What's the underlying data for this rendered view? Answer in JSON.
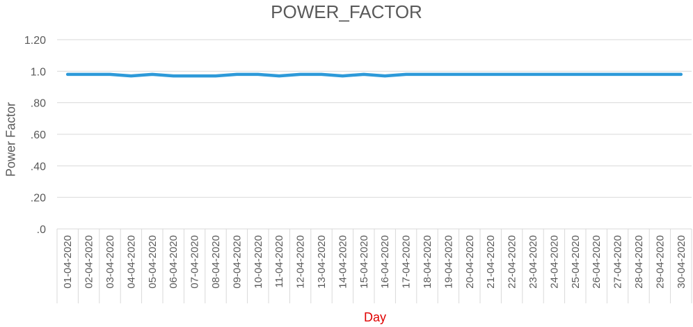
{
  "chart_data": {
    "type": "line",
    "title": "POWER_FACTOR",
    "xlabel": "Day",
    "ylabel": "Power Factor",
    "ylim": [
      0,
      1.2
    ],
    "yticks": [
      ".0",
      ".20",
      ".40",
      ".60",
      ".80",
      "1.0",
      "1.20"
    ],
    "ytick_values": [
      0,
      0.2,
      0.4,
      0.6,
      0.8,
      1.0,
      1.2
    ],
    "grid": true,
    "categories": [
      "01-04-2020",
      "02-04-2020",
      "03-04-2020",
      "04-04-2020",
      "05-04-2020",
      "06-04-2020",
      "07-04-2020",
      "08-04-2020",
      "09-04-2020",
      "10-04-2020",
      "11-04-2020",
      "12-04-2020",
      "13-04-2020",
      "14-04-2020",
      "15-04-2020",
      "16-04-2020",
      "17-04-2020",
      "18-04-2020",
      "19-04-2020",
      "20-04-2020",
      "21-04-2020",
      "22-04-2020",
      "23-04-2020",
      "24-04-2020",
      "25-04-2020",
      "26-04-2020",
      "27-04-2020",
      "28-04-2020",
      "29-04-2020",
      "30-04-2020"
    ],
    "series": [
      {
        "values": [
          0.98,
          0.98,
          0.98,
          0.97,
          0.98,
          0.97,
          0.97,
          0.97,
          0.98,
          0.98,
          0.97,
          0.98,
          0.98,
          0.97,
          0.98,
          0.97,
          0.98,
          0.98,
          0.98,
          0.98,
          0.98,
          0.98,
          0.98,
          0.98,
          0.98,
          0.98,
          0.98,
          0.98,
          0.98,
          0.98
        ],
        "color": "#2e9ad9"
      }
    ],
    "colors": {
      "title": "#595959",
      "xlabel": "#e00000",
      "grid": "#d9d9d9",
      "line": "#2e9ad9"
    }
  }
}
